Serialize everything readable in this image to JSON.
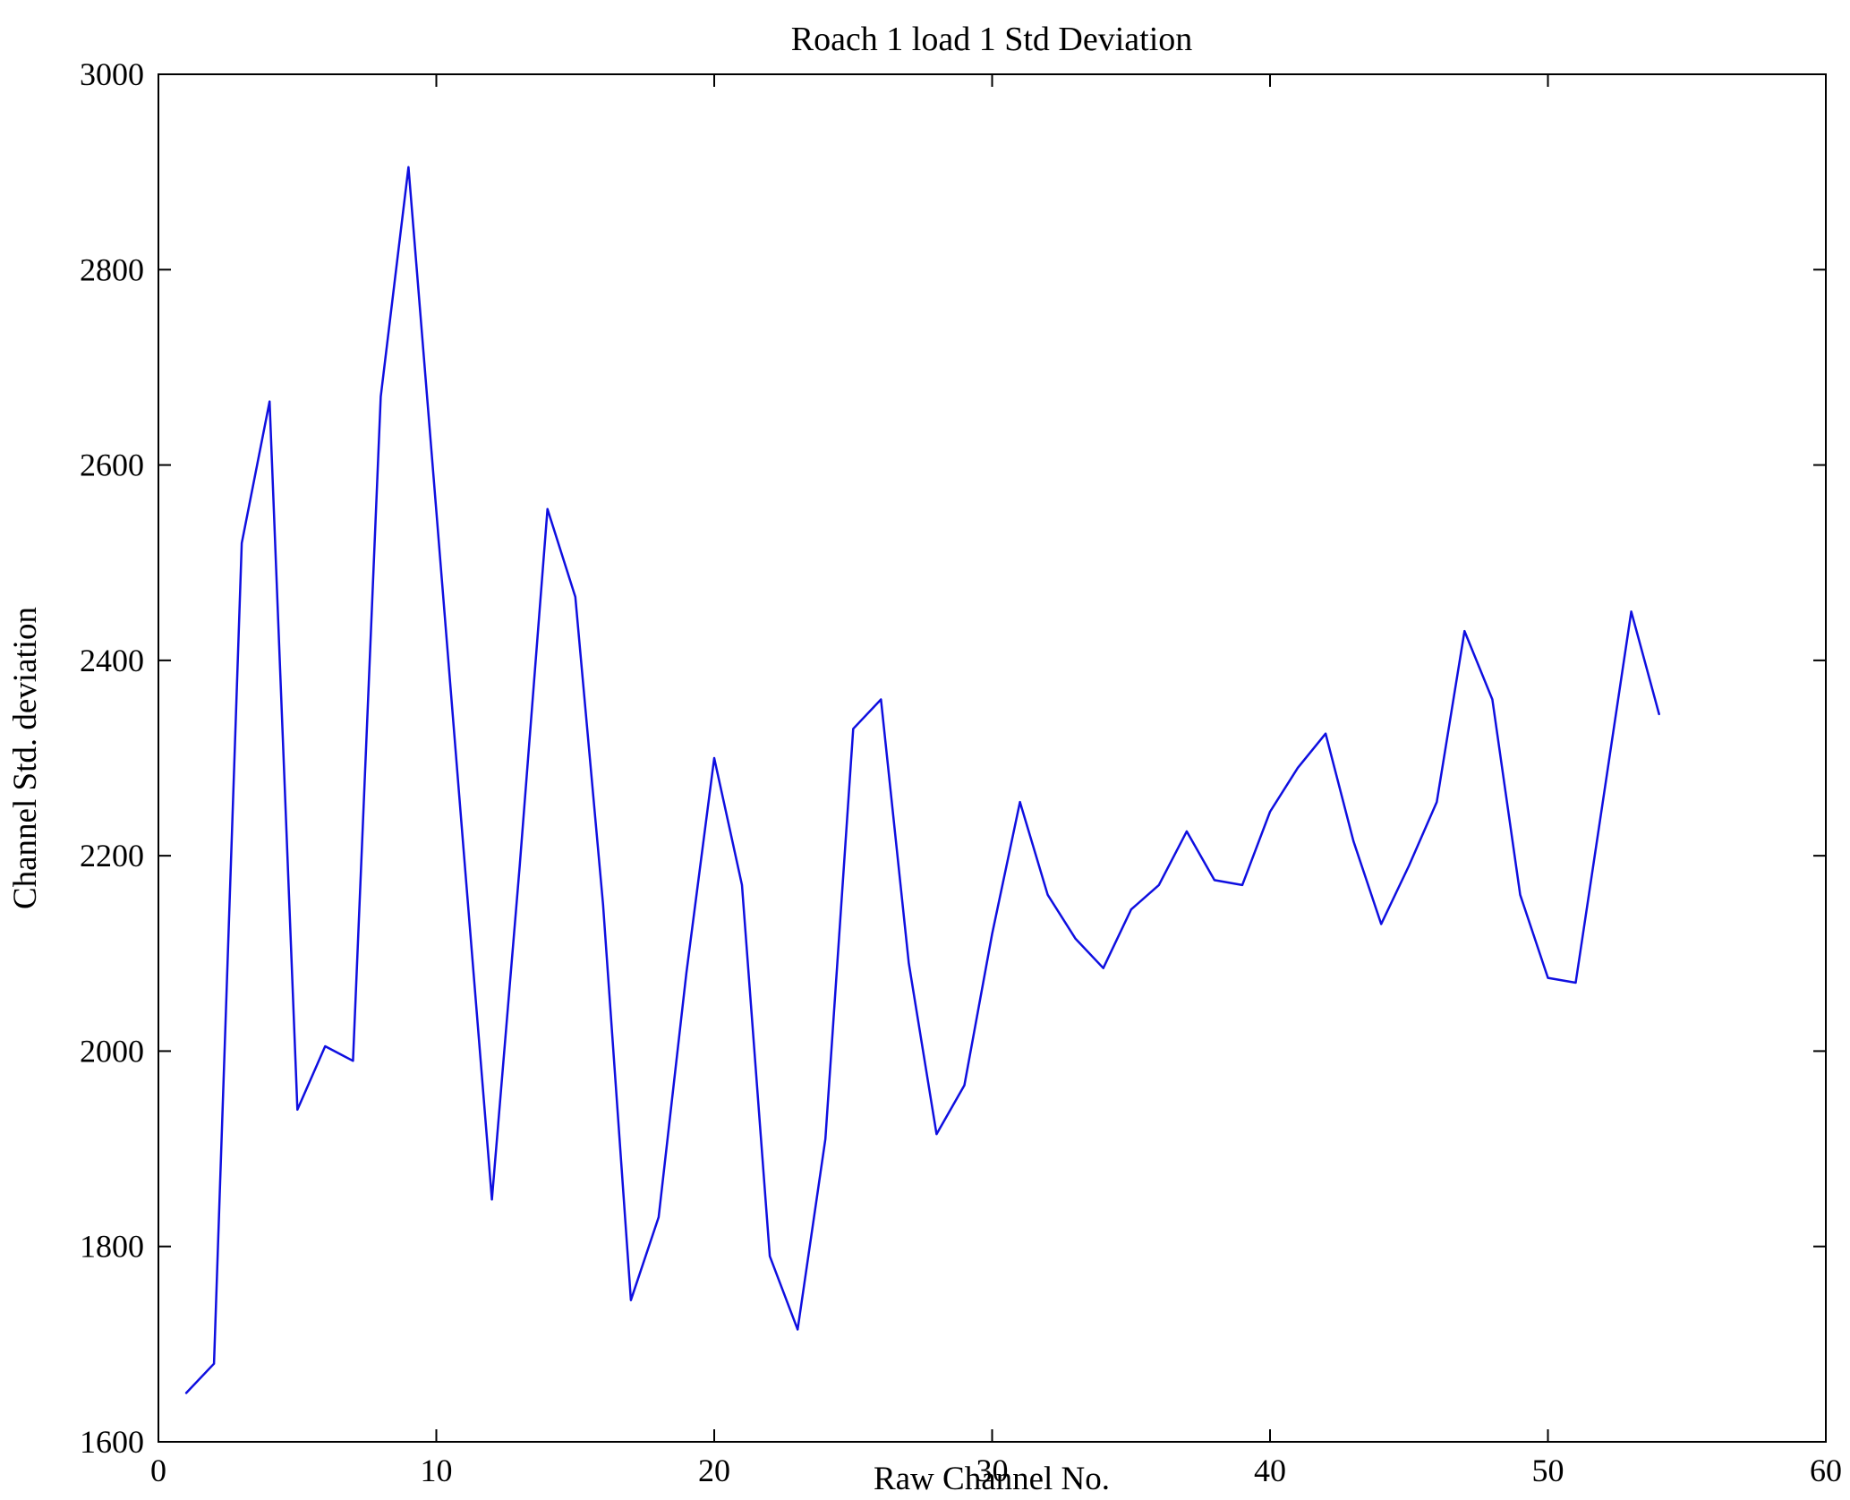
{
  "chart_data": {
    "type": "line",
    "title": "Roach 1 load 1 Std Deviation",
    "xlabel": "Raw Channel No.",
    "ylabel": "Channel Std. deviation",
    "xlim": [
      0,
      60
    ],
    "ylim": [
      1600,
      3000
    ],
    "xticks": [
      0,
      10,
      20,
      30,
      40,
      50,
      60
    ],
    "yticks": [
      1600,
      1800,
      2000,
      2200,
      2400,
      2600,
      2800,
      3000
    ],
    "grid": false,
    "legend": null,
    "line_color": "#0f0fe0",
    "axis_color": "#000000",
    "x": [
      1,
      2,
      3,
      4,
      5,
      6,
      7,
      8,
      9,
      10,
      11,
      12,
      13,
      14,
      15,
      16,
      17,
      18,
      19,
      20,
      21,
      22,
      23,
      24,
      25,
      26,
      27,
      28,
      29,
      30,
      31,
      32,
      33,
      34,
      35,
      36,
      37,
      38,
      39,
      40,
      41,
      42,
      43,
      44,
      45,
      46,
      47,
      48,
      49,
      50,
      51,
      52,
      53,
      54
    ],
    "y": [
      1650,
      1680,
      2520,
      2665,
      1940,
      2005,
      1990,
      2670,
      2905,
      2553,
      2200,
      1848,
      2190,
      2555,
      2465,
      2150,
      1745,
      1830,
      2080,
      2300,
      2170,
      1790,
      1715,
      1910,
      2330,
      2360,
      2090,
      1915,
      1965,
      2120,
      2255,
      2160,
      2115,
      2085,
      2145,
      2170,
      2225,
      2175,
      2170,
      2245,
      2290,
      2325,
      2215,
      2130,
      2190,
      2255,
      2430,
      2360,
      2160,
      2075,
      2070,
      2260,
      2450,
      2345
    ]
  }
}
